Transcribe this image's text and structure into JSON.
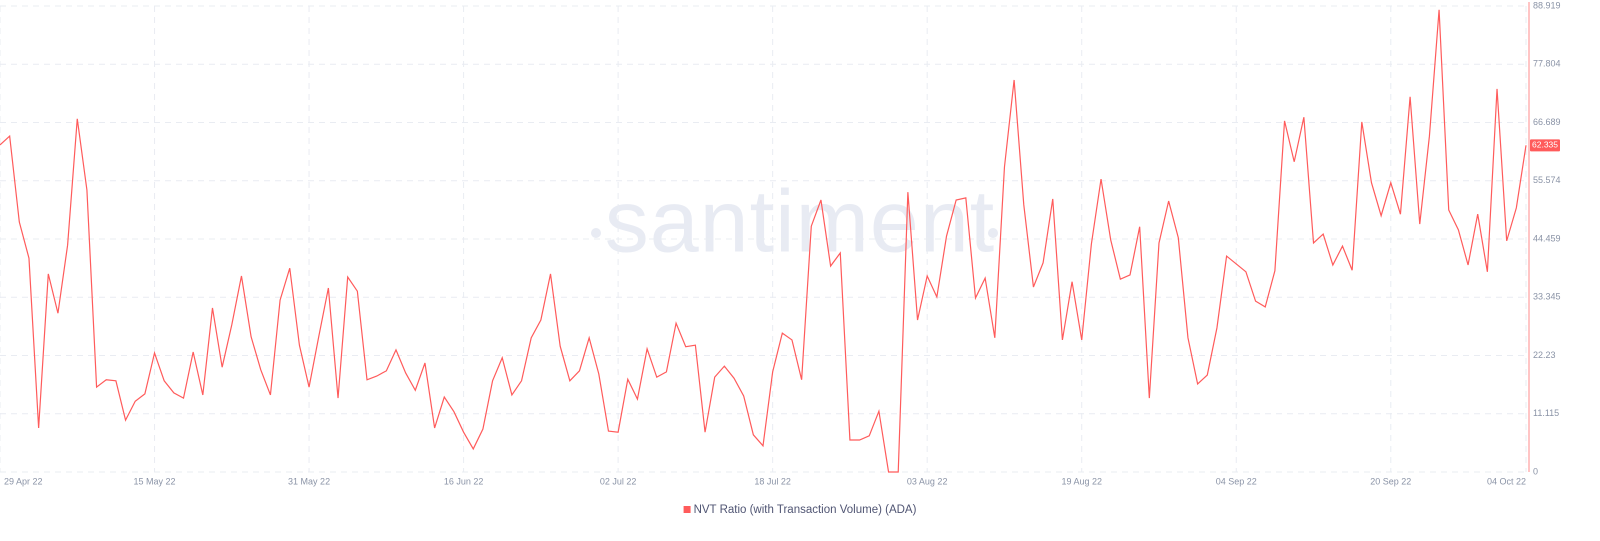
{
  "chart_data": {
    "type": "line",
    "watermark": "santiment",
    "categories": [
      "29 Apr 22",
      null,
      null,
      null,
      null,
      null,
      null,
      null,
      null,
      null,
      null,
      null,
      null,
      null,
      null,
      null,
      "15 May 22",
      null,
      null,
      null,
      null,
      null,
      null,
      null,
      null,
      null,
      null,
      null,
      null,
      null,
      null,
      null,
      "31 May 22",
      null,
      null,
      null,
      null,
      null,
      null,
      null,
      null,
      null,
      null,
      null,
      null,
      null,
      null,
      null,
      "16 Jun 22",
      null,
      null,
      null,
      null,
      null,
      null,
      null,
      null,
      null,
      null,
      null,
      null,
      null,
      null,
      null,
      "02 Jul 22",
      null,
      null,
      null,
      null,
      null,
      null,
      null,
      null,
      null,
      null,
      null,
      null,
      null,
      null,
      null,
      "18 Jul 22",
      null,
      null,
      null,
      null,
      null,
      null,
      null,
      null,
      null,
      null,
      null,
      null,
      null,
      null,
      null,
      "03 Aug 22",
      null,
      null,
      null,
      null,
      null,
      null,
      null,
      null,
      null,
      null,
      null,
      null,
      null,
      null,
      null,
      "19 Aug 22",
      null,
      null,
      null,
      null,
      null,
      null,
      null,
      null,
      null,
      null,
      null,
      null,
      null,
      null,
      null,
      "04 Sep 22",
      null,
      null,
      null,
      null,
      null,
      null,
      null,
      null,
      null,
      null,
      null,
      null,
      null,
      null,
      null,
      "20 Sep 22",
      null,
      null,
      null,
      null,
      null,
      null,
      null,
      null,
      null,
      null,
      null,
      null,
      null,
      "04 Oct 22"
    ],
    "series": [
      {
        "name": "NVT Ratio (with Transaction Volume) (ADA)",
        "color": "#ff5b5b",
        "values": [
          62.4,
          64.1,
          47.7,
          40.8,
          8.4,
          37.8,
          30.3,
          43.3,
          67.4,
          53.8,
          16.2,
          17.6,
          17.4,
          9.9,
          13.5,
          14.9,
          22.7,
          17.4,
          15.1,
          14.1,
          22.9,
          14.7,
          31.3,
          20.0,
          28.1,
          37.4,
          25.8,
          19.5,
          14.7,
          32.8,
          38.9,
          24.2,
          16.2,
          25.8,
          35.1,
          14.1,
          37.2,
          34.5,
          17.6,
          18.3,
          19.3,
          23.3,
          18.9,
          15.6,
          20.8,
          8.4,
          14.3,
          11.5,
          7.6,
          4.4,
          8.2,
          17.4,
          21.8,
          14.7,
          17.4,
          25.6,
          29.0,
          37.8,
          24.0,
          17.4,
          19.3,
          25.6,
          18.7,
          7.8,
          7.6,
          17.7,
          13.9,
          23.5,
          18.1,
          19.1,
          28.4,
          23.9,
          24.2,
          7.6,
          18.1,
          20.2,
          17.9,
          14.5,
          7.1,
          5.0,
          19.1,
          26.5,
          25.2,
          17.6,
          46.9,
          51.9,
          39.3,
          41.8,
          6.1,
          6.1,
          6.9,
          11.6,
          0,
          0,
          53.4,
          29.0,
          37.4,
          33.4,
          45.0,
          51.9,
          52.3,
          33.2,
          37.0,
          25.6,
          58.2,
          74.8,
          51.0,
          35.3,
          39.9,
          52.1,
          25.2,
          36.3,
          25.2,
          43.5,
          55.9,
          44.3,
          36.8,
          37.6,
          46.8,
          14.1,
          43.7,
          51.7,
          44.7,
          25.6,
          16.8,
          18.5,
          27.5,
          41.2,
          39.7,
          38.2,
          32.6,
          31.5,
          38.4,
          67.0,
          59.2,
          67.7,
          43.7,
          45.4,
          39.5,
          43.1,
          38.5,
          66.8,
          55.2,
          48.9,
          55.2,
          49.2,
          71.6,
          47.3,
          64.1,
          88.2,
          50.0,
          46.2,
          39.5,
          49.2,
          38.2,
          73.1,
          44.1,
          50.4,
          62.335
        ]
      }
    ],
    "ylim": [
      0,
      88.919
    ],
    "yticks": [
      0,
      11.115,
      22.23,
      33.345,
      44.459,
      55.574,
      66.689,
      77.804,
      88.919
    ],
    "y_axis_side": "right",
    "grid": true,
    "legend": "bottom"
  }
}
